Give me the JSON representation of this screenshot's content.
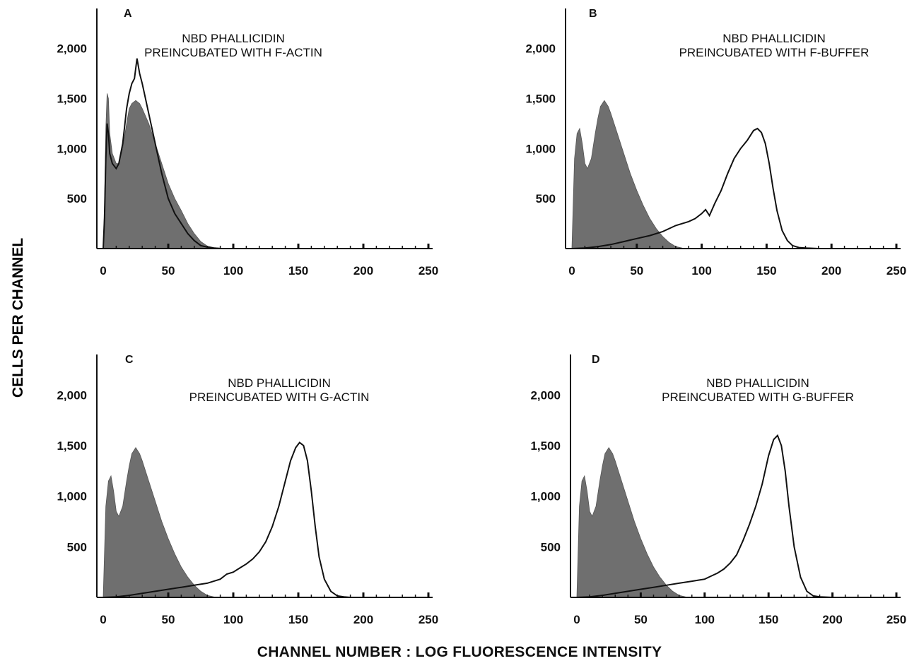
{
  "figure": {
    "ylabel": "CELLS PER CHANNEL",
    "xlabel": "CHANNEL NUMBER : LOG FLUORESCENCE INTENSITY",
    "colors": {
      "filled": "#6f6f6f",
      "line": "#111111",
      "axis": "#111111"
    }
  },
  "chart_data": [
    {
      "type": "area",
      "panel": "A",
      "title": "NBD PHALLICIDIN\nPREINCUBATED WITH F-ACTIN",
      "xlim": [
        0,
        250
      ],
      "ylim": [
        0,
        2400
      ],
      "xticks": [
        0,
        50,
        100,
        150,
        200,
        250
      ],
      "xtick_labels": [
        "0",
        "50",
        "100",
        "150",
        "200",
        "250"
      ],
      "yticks": [
        500,
        1000,
        1500,
        2000
      ],
      "ytick_labels": [
        "500",
        "1,000",
        "1,500",
        "2,000"
      ],
      "series": [
        {
          "style": "filled",
          "x": [
            0,
            1,
            2,
            3,
            4,
            5,
            7,
            10,
            12,
            15,
            18,
            20,
            22,
            25,
            28,
            30,
            35,
            40,
            45,
            50,
            55,
            60,
            65,
            70,
            75,
            80,
            85,
            90,
            95,
            100
          ],
          "y": [
            0,
            400,
            1200,
            1550,
            1500,
            1150,
            950,
            850,
            850,
            1000,
            1250,
            1400,
            1450,
            1480,
            1450,
            1400,
            1250,
            1050,
            850,
            650,
            500,
            380,
            250,
            150,
            70,
            25,
            10,
            5,
            0,
            0
          ]
        },
        {
          "style": "line",
          "x": [
            0,
            1,
            2,
            3,
            4,
            5,
            7,
            10,
            12,
            15,
            18,
            20,
            22,
            24,
            26,
            28,
            30,
            35,
            40,
            45,
            50,
            55,
            60,
            65,
            70,
            75,
            80,
            85,
            90,
            95,
            100
          ],
          "y": [
            0,
            300,
            900,
            1250,
            1150,
            950,
            850,
            800,
            850,
            1050,
            1400,
            1550,
            1650,
            1700,
            1900,
            1750,
            1650,
            1350,
            1050,
            750,
            500,
            350,
            250,
            150,
            80,
            30,
            15,
            5,
            0,
            0,
            0
          ]
        }
      ]
    },
    {
      "type": "area",
      "panel": "B",
      "title": "NBD PHALLICIDIN\nPREINCUBATED WITH F-BUFFER",
      "xlim": [
        0,
        250
      ],
      "ylim": [
        0,
        2400
      ],
      "xticks": [
        0,
        50,
        100,
        150,
        200,
        250
      ],
      "xtick_labels": [
        "0",
        "50",
        "100",
        "150",
        "200",
        "250"
      ],
      "yticks": [
        500,
        1000,
        1500,
        2000
      ],
      "ytick_labels": [
        "500",
        "1,000",
        "1,500",
        "2,000"
      ],
      "series": [
        {
          "style": "filled",
          "x": [
            0,
            2,
            4,
            6,
            8,
            10,
            12,
            15,
            18,
            20,
            22,
            25,
            28,
            30,
            35,
            40,
            45,
            50,
            55,
            60,
            65,
            70,
            75,
            80,
            85,
            90
          ],
          "y": [
            0,
            900,
            1150,
            1200,
            1050,
            850,
            800,
            900,
            1150,
            1300,
            1420,
            1480,
            1420,
            1350,
            1150,
            950,
            750,
            580,
            430,
            300,
            200,
            120,
            60,
            20,
            5,
            0
          ]
        },
        {
          "style": "line",
          "x": [
            0,
            10,
            20,
            30,
            40,
            50,
            60,
            70,
            80,
            90,
            95,
            100,
            103,
            106,
            110,
            115,
            120,
            125,
            130,
            135,
            140,
            143,
            146,
            149,
            152,
            155,
            158,
            162,
            166,
            170,
            175,
            180,
            190,
            200,
            250
          ],
          "y": [
            0,
            5,
            20,
            40,
            70,
            100,
            130,
            170,
            230,
            270,
            300,
            350,
            390,
            330,
            450,
            580,
            750,
            900,
            1000,
            1080,
            1180,
            1200,
            1160,
            1050,
            850,
            600,
            380,
            180,
            80,
            30,
            10,
            5,
            0,
            0,
            0
          ]
        }
      ]
    },
    {
      "type": "area",
      "panel": "C",
      "title": "NBD PHALLICIDIN\nPREINCUBATED WITH G-ACTIN",
      "xlim": [
        0,
        250
      ],
      "ylim": [
        0,
        2400
      ],
      "xticks": [
        0,
        50,
        100,
        150,
        200,
        250
      ],
      "xtick_labels": [
        "0",
        "50",
        "100",
        "150",
        "200",
        "250"
      ],
      "yticks": [
        500,
        1000,
        1500,
        2000
      ],
      "ytick_labels": [
        "500",
        "1,000",
        "1,500",
        "2,000"
      ],
      "series": [
        {
          "style": "filled",
          "x": [
            0,
            2,
            4,
            6,
            8,
            10,
            12,
            15,
            18,
            20,
            22,
            25,
            28,
            30,
            35,
            40,
            45,
            50,
            55,
            60,
            65,
            70,
            75,
            80,
            85,
            90
          ],
          "y": [
            0,
            900,
            1150,
            1200,
            1050,
            850,
            800,
            900,
            1150,
            1300,
            1420,
            1480,
            1420,
            1350,
            1150,
            950,
            750,
            580,
            430,
            300,
            200,
            120,
            60,
            20,
            5,
            0
          ]
        },
        {
          "style": "line",
          "x": [
            0,
            10,
            20,
            30,
            40,
            50,
            60,
            70,
            80,
            90,
            95,
            100,
            105,
            110,
            115,
            120,
            125,
            130,
            135,
            140,
            144,
            148,
            151,
            154,
            157,
            160,
            163,
            166,
            170,
            175,
            180,
            185,
            190,
            200,
            250
          ],
          "y": [
            0,
            5,
            20,
            40,
            60,
            80,
            100,
            120,
            140,
            180,
            230,
            250,
            290,
            330,
            380,
            450,
            550,
            700,
            900,
            1150,
            1350,
            1480,
            1530,
            1500,
            1350,
            1050,
            700,
            400,
            180,
            60,
            15,
            5,
            0,
            0,
            0
          ]
        }
      ]
    },
    {
      "type": "area",
      "panel": "D",
      "title": "NBD PHALLICIDIN\nPREINCUBATED WITH G-BUFFER",
      "xlim": [
        0,
        250
      ],
      "ylim": [
        0,
        2400
      ],
      "xticks": [
        0,
        50,
        100,
        150,
        200,
        250
      ],
      "xtick_labels": [
        "0",
        "50",
        "100",
        "150",
        "200",
        "250"
      ],
      "yticks": [
        500,
        1000,
        1500,
        2000
      ],
      "ytick_labels": [
        "500",
        "1,000",
        "1,500",
        "2,000"
      ],
      "series": [
        {
          "style": "filled",
          "x": [
            0,
            2,
            4,
            6,
            8,
            10,
            12,
            15,
            18,
            20,
            22,
            25,
            28,
            30,
            35,
            40,
            45,
            50,
            55,
            60,
            65,
            70,
            75,
            80,
            85,
            90
          ],
          "y": [
            0,
            900,
            1150,
            1200,
            1050,
            850,
            800,
            900,
            1150,
            1300,
            1420,
            1480,
            1420,
            1350,
            1150,
            950,
            750,
            580,
            430,
            300,
            200,
            120,
            60,
            20,
            5,
            0
          ]
        },
        {
          "style": "line",
          "x": [
            0,
            10,
            20,
            30,
            40,
            50,
            60,
            70,
            80,
            90,
            95,
            100,
            105,
            110,
            115,
            120,
            125,
            130,
            135,
            140,
            145,
            150,
            154,
            157,
            160,
            163,
            166,
            170,
            175,
            180,
            185,
            190,
            200,
            250
          ],
          "y": [
            0,
            5,
            20,
            40,
            60,
            80,
            100,
            120,
            140,
            160,
            170,
            180,
            210,
            240,
            280,
            340,
            420,
            560,
            720,
            900,
            1120,
            1400,
            1560,
            1600,
            1500,
            1250,
            900,
            500,
            200,
            60,
            15,
            5,
            0,
            0
          ]
        }
      ]
    }
  ]
}
